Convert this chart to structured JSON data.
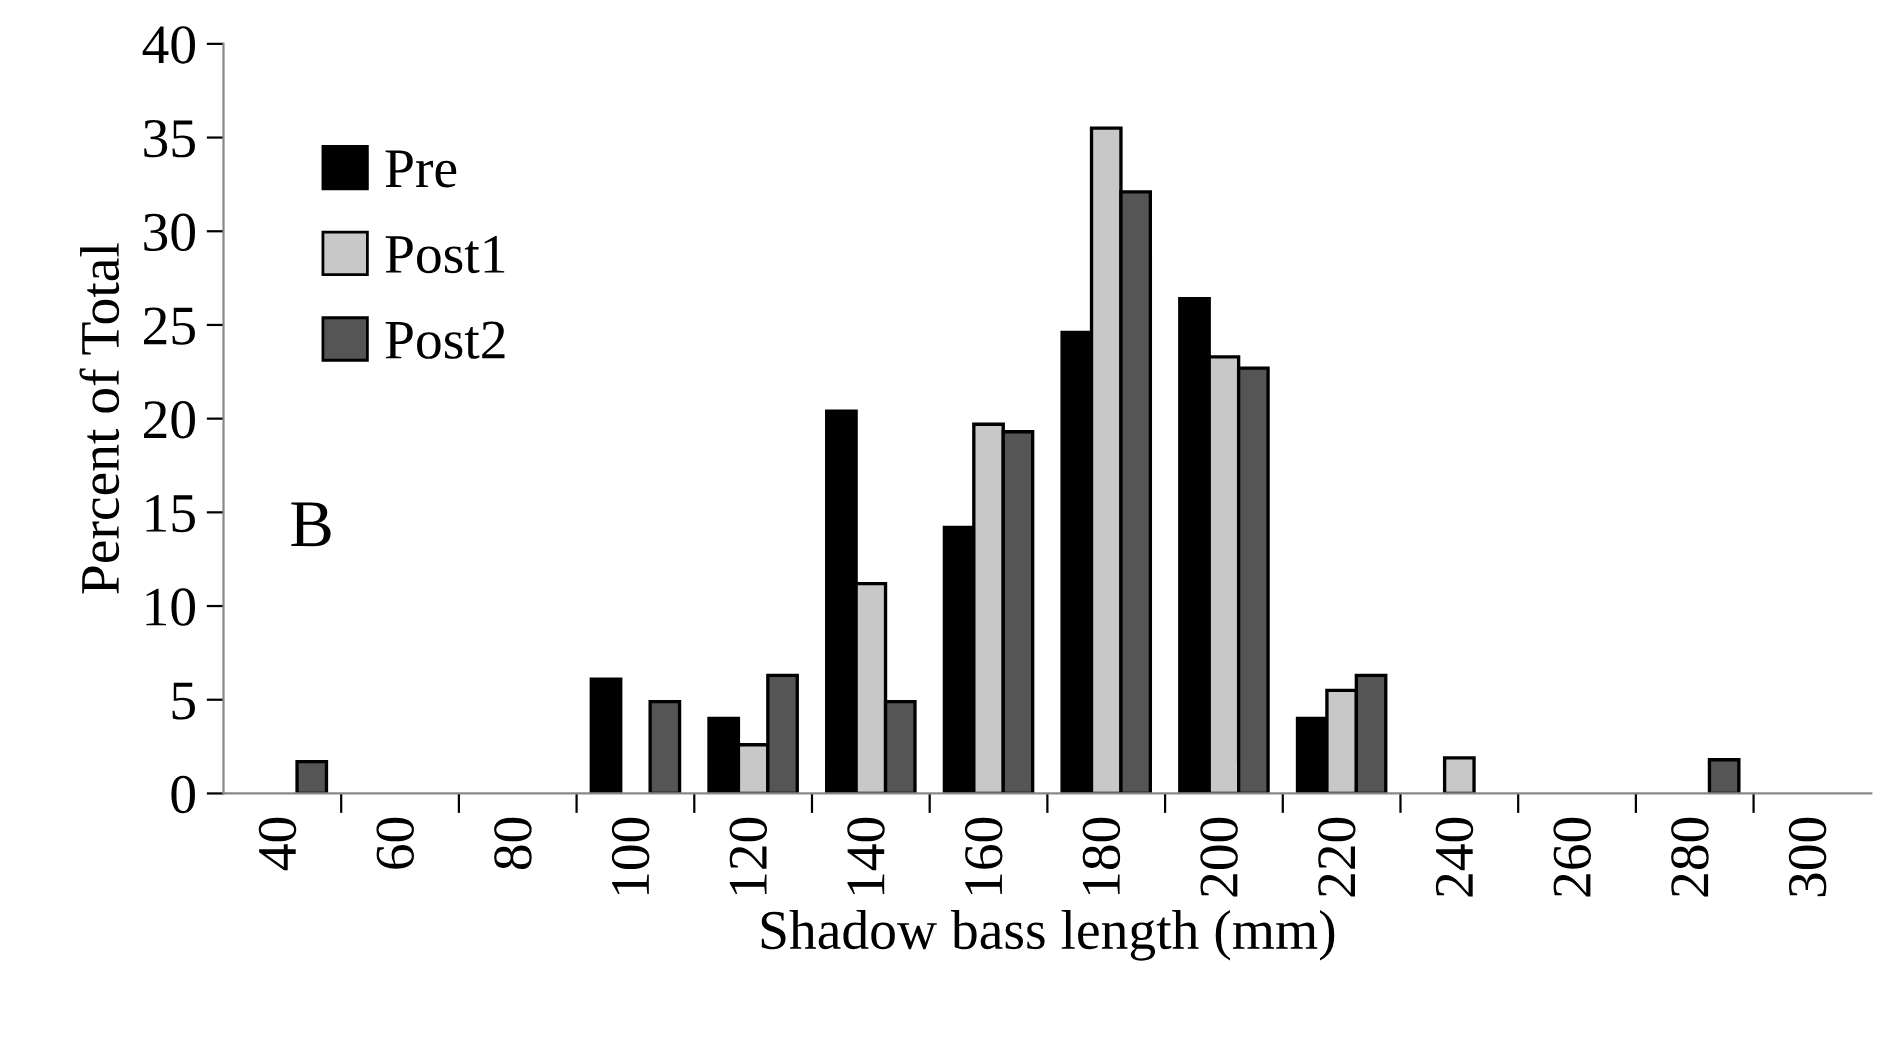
{
  "chart_data": {
    "type": "bar",
    "xlabel": "Shadow bass length (mm)",
    "ylabel": "Percent of Total",
    "categories": [
      "40",
      "60",
      "80",
      "100",
      "120",
      "140",
      "160",
      "180",
      "200",
      "220",
      "240",
      "260",
      "280",
      "300"
    ],
    "series": [
      {
        "name": "Pre",
        "color": "#000000",
        "values": [
          0,
          0,
          0,
          6.1,
          4.0,
          20.4,
          14.2,
          24.6,
          26.4,
          4.0,
          0,
          0,
          0,
          0
        ]
      },
      {
        "name": "Post1",
        "color": "#c8c8c8",
        "values": [
          0,
          0,
          0,
          0,
          2.6,
          11.2,
          19.7,
          35.5,
          23.3,
          5.5,
          1.9,
          0,
          0,
          0
        ]
      },
      {
        "name": "Post2",
        "color": "#555555",
        "values": [
          1.7,
          0,
          0,
          4.9,
          6.3,
          4.9,
          19.3,
          32.1,
          22.7,
          6.3,
          0,
          0,
          1.8,
          0
        ]
      }
    ],
    "ylim": [
      0,
      40
    ],
    "yticks": [
      0,
      5,
      10,
      15,
      20,
      25,
      30,
      35,
      40
    ],
    "grid": false,
    "legend": "top left",
    "annotations": [
      "B"
    ]
  }
}
